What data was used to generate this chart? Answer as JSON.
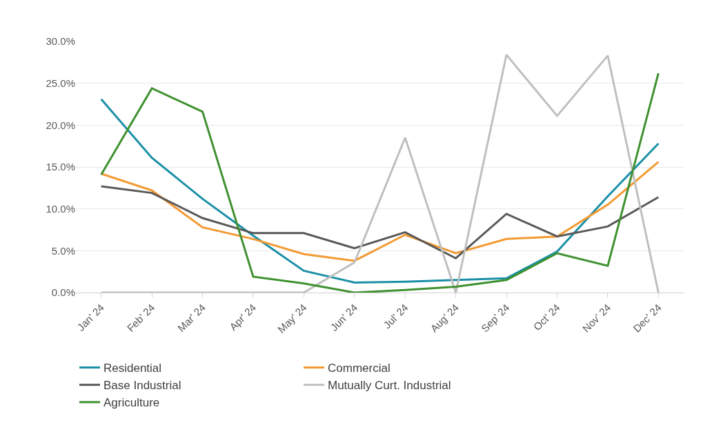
{
  "chart_data": {
    "type": "line",
    "categories": [
      "Jan' 24",
      "Feb' 24",
      "Mar' 24",
      "Apr' 24",
      "May' 24",
      "Jun' 24",
      "Jul' 24",
      "Aug' 24",
      "Sep' 24",
      "Oct' 24",
      "Nov' 24",
      "Dec' 24"
    ],
    "series": [
      {
        "name": "Residential",
        "color": "#1a8fa6",
        "values": [
          23.1,
          16.1,
          11.2,
          6.8,
          2.6,
          1.2,
          1.3,
          1.5,
          1.7,
          4.9,
          11.5,
          17.8
        ]
      },
      {
        "name": "Commercial",
        "color": "#f39a32",
        "values": [
          14.2,
          12.2,
          7.8,
          6.4,
          4.6,
          3.8,
          6.9,
          4.7,
          6.4,
          6.7,
          10.5,
          15.6
        ]
      },
      {
        "name": "Base Industrial",
        "color": "#595959",
        "values": [
          12.7,
          11.9,
          8.9,
          7.1,
          7.1,
          5.3,
          7.2,
          4.1,
          9.4,
          6.7,
          7.9,
          11.4
        ]
      },
      {
        "name": "Mutually Curt. Industrial",
        "color": "#bfbfbf",
        "values": [
          0,
          0,
          0,
          0,
          0,
          3.6,
          18.5,
          0,
          28.4,
          21.1,
          28.3,
          0
        ]
      },
      {
        "name": "Agriculture",
        "color": "#3f9130",
        "values": [
          14.1,
          24.4,
          21.6,
          1.9,
          1.1,
          0,
          0.3,
          0.7,
          1.5,
          4.7,
          3.2,
          26.2
        ]
      }
    ],
    "ylim": [
      0,
      30
    ],
    "yticks": [
      {
        "value": 0,
        "label": "0.0%"
      },
      {
        "value": 5,
        "label": "5.0%"
      },
      {
        "value": 10,
        "label": "10.0%"
      },
      {
        "value": 15,
        "label": "15.0%"
      },
      {
        "value": 20,
        "label": "20.0%"
      },
      {
        "value": 25,
        "label": "25.0%"
      },
      {
        "value": 30,
        "label": "30.0%"
      }
    ],
    "grid": "y",
    "legend": "bottom",
    "marker": "none",
    "line_style": "solid"
  }
}
